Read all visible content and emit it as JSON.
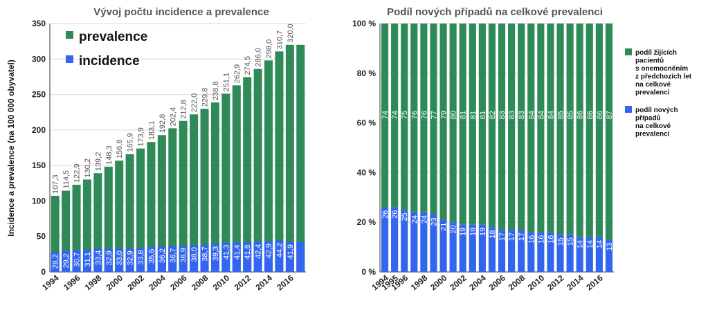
{
  "chart_data": [
    {
      "type": "bar",
      "title": "Vývoj počtu incidence a prevalence",
      "ylabel": "Incidence a prevalence (na 100 000 obyvatel)",
      "ylim": [
        0,
        350
      ],
      "yticks": [
        "0",
        "50",
        "100",
        "150",
        "200",
        "250",
        "300",
        "350"
      ],
      "categories": [
        "1994",
        "1995",
        "1996",
        "1997",
        "1998",
        "1999",
        "2000",
        "2001",
        "2002",
        "2003",
        "2004",
        "2005",
        "2006",
        "2007",
        "2008",
        "2009",
        "2010",
        "2011",
        "2012",
        "2013",
        "2014",
        "2015",
        "2016",
        "2017"
      ],
      "xtick_labels": [
        "1994",
        "1996",
        "1998",
        "2000",
        "2002",
        "2004",
        "2006",
        "2008",
        "2010",
        "2012",
        "2014",
        "2016"
      ],
      "series": [
        {
          "name": "prevalence",
          "color": "#2e8b57",
          "values": [
            107.3,
            114.5,
            122.9,
            130.2,
            139.2,
            148.3,
            156.8,
            165.9,
            173.9,
            183.1,
            192.8,
            202.4,
            212.8,
            222.0,
            229.8,
            238.8,
            251.1,
            262.9,
            274.5,
            286.0,
            298.0,
            310.7,
            320.0,
            320.0
          ],
          "labels": [
            "107,3",
            "114,5",
            "122,9",
            "130,2",
            "139,2",
            "148,3",
            "156,8",
            "165,9",
            "173,9",
            "183,1",
            "192,8",
            "202,4",
            "212,8",
            "222,0",
            "229,8",
            "238,8",
            "251,1",
            "262,9",
            "274,5",
            "286,0",
            "298,0",
            "310,7",
            "320,0",
            ""
          ]
        },
        {
          "name": "incidence",
          "color": "#3366ee",
          "values": [
            28.2,
            29.2,
            30.7,
            31.1,
            33.4,
            32.9,
            33.0,
            32.9,
            33.8,
            35.6,
            36.2,
            36.7,
            36.9,
            38.0,
            38.7,
            39.3,
            41.3,
            41.4,
            41.6,
            42.4,
            42.9,
            44.2,
            41.9,
            41.9
          ],
          "labels": [
            "28,2",
            "29,2",
            "30,7",
            "31,1",
            "33,4",
            "32,9",
            "33,0",
            "32,9",
            "33,8",
            "35,6",
            "36,2",
            "36,7",
            "36,9",
            "38,0",
            "38,7",
            "39,3",
            "41,3",
            "41,4",
            "41,6",
            "42,4",
            "42,9",
            "44,2",
            "41,9",
            ""
          ]
        }
      ],
      "grid": true,
      "legend": "top-left"
    },
    {
      "type": "bar",
      "stacked": true,
      "title": "Podíl nových případů na celkové prevalenci",
      "ylim": [
        0,
        100
      ],
      "yticks": [
        "0 %",
        "20 %",
        "40 %",
        "60 %",
        "80 %",
        "100 %"
      ],
      "categories": [
        "1994",
        "1995",
        "1996",
        "1997",
        "1998",
        "1999",
        "2000",
        "2001",
        "2002",
        "2003",
        "2004",
        "2005",
        "2006",
        "2007",
        "2008",
        "2009",
        "2010",
        "2011",
        "2012",
        "2013",
        "2014",
        "2015",
        "2016",
        "2017"
      ],
      "xtick_labels": [
        "1994",
        "1995",
        "1996",
        "1998",
        "2000",
        "2002",
        "2004",
        "2006",
        "2008",
        "2010",
        "2012",
        "2014",
        "2016"
      ],
      "series": [
        {
          "name": "podíl nových případů na celkové prevalenci",
          "color": "#3366ee",
          "values": [
            26,
            26,
            25,
            24,
            24,
            23,
            21,
            20,
            19,
            19,
            19,
            18,
            17,
            17,
            17,
            16,
            16,
            16,
            15,
            15,
            14,
            14,
            14,
            13
          ],
          "labels": [
            "26",
            "26",
            "25",
            "24",
            "24",
            "23",
            "21",
            "20",
            "19",
            "19",
            "19",
            "18",
            "17",
            "17",
            "17",
            "16",
            "16",
            "16",
            "15",
            "15",
            "14",
            "14",
            "14",
            "13"
          ]
        },
        {
          "name": "podíl žijících pacientů s onemocněním z předchozích let na celkové prevalenci",
          "color": "#2e8b57",
          "values": [
            74,
            74,
            75,
            76,
            76,
            77,
            79,
            80,
            81,
            81,
            81,
            82,
            83,
            83,
            83,
            84,
            84,
            84,
            85,
            85,
            86,
            86,
            86,
            87
          ],
          "labels": [
            "74",
            "74",
            "75",
            "76",
            "76",
            "77",
            "79",
            "80",
            "81",
            "81",
            "81",
            "82",
            "83",
            "83",
            "83",
            "84",
            "84",
            "84",
            "85",
            "85",
            "86",
            "86",
            "86",
            "87"
          ]
        }
      ],
      "legend_lines": [
        [
          "podíl žijících",
          "pacientů",
          "s onemocněním",
          "z předchozích let",
          "na celkové",
          "prevalenci"
        ],
        [
          "podíl nových",
          "případů",
          "na celkové",
          "prevalenci"
        ]
      ],
      "grid": true,
      "legend": "right"
    }
  ]
}
